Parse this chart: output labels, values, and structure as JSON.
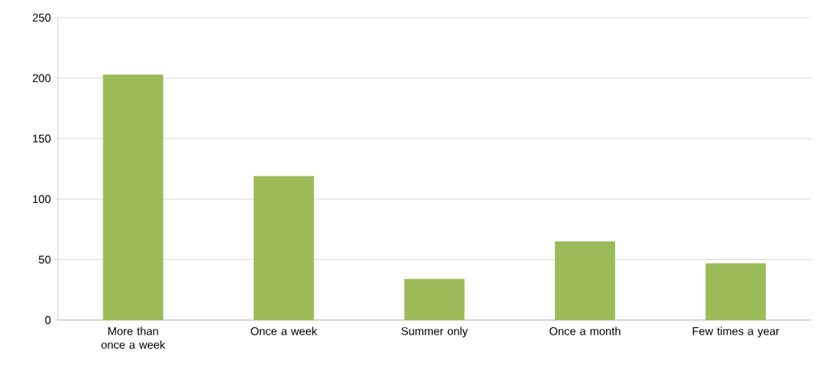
{
  "chart_data": {
    "type": "bar",
    "categories": [
      "More than once a week",
      "Once a week",
      "Summer only",
      "Once a month",
      "Few times a year"
    ],
    "values": [
      203,
      119,
      34,
      65,
      47
    ],
    "color": "#9bbb59",
    "ylim": [
      0,
      250
    ],
    "yticks": [
      0,
      50,
      100,
      150,
      200,
      250
    ],
    "grid": "y"
  }
}
